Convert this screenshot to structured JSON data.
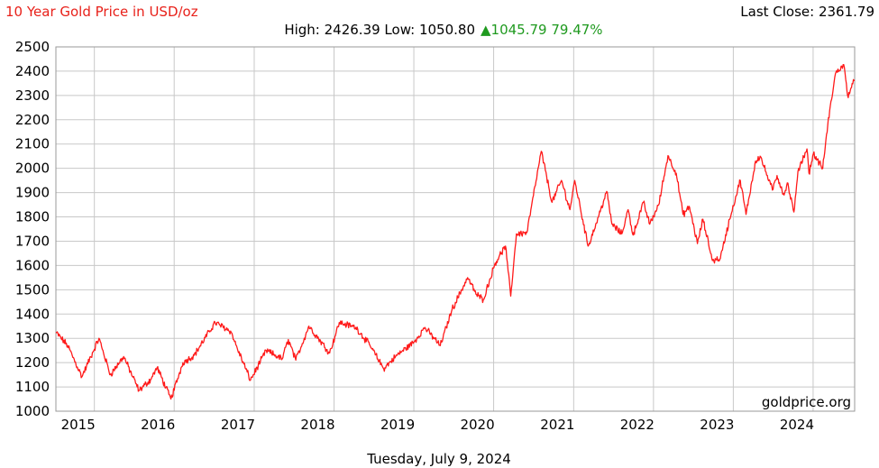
{
  "header": {
    "title": "10 Year Gold Price in USD/oz",
    "last_close": "Last Close: 2361.79",
    "high_low": "High: 2426.39 Low: 1050.80",
    "change": "▲1045.79 79.47%"
  },
  "footer": {
    "date": "Tuesday, July 9, 2024"
  },
  "watermark": "goldprice.org",
  "colors": {
    "line": "#ff1a1a",
    "title": "#e8211a",
    "change": "#1f9a1f",
    "grid": "#c8c8c8"
  },
  "chart_data": {
    "type": "line",
    "title": "10 Year Gold Price in USD/oz",
    "xlabel": "",
    "ylabel": "",
    "grid": true,
    "x_ticks": [
      "2015",
      "2016",
      "2017",
      "2018",
      "2019",
      "2020",
      "2021",
      "2022",
      "2023",
      "2024"
    ],
    "y_ticks": [
      1000,
      1100,
      1200,
      1300,
      1400,
      1500,
      1600,
      1700,
      1800,
      1900,
      2000,
      2100,
      2200,
      2300,
      2400,
      2500
    ],
    "xlim": [
      "2014-07-09",
      "2024-07-09"
    ],
    "ylim": [
      1000,
      2500
    ],
    "series": [
      {
        "x": [
          "2014-07-09",
          "2014-09-01",
          "2014-11-05",
          "2015-01-22",
          "2015-03-15",
          "2015-05-15",
          "2015-07-24",
          "2015-09-15",
          "2015-10-15",
          "2015-12-17",
          "2016-02-10",
          "2016-04-01",
          "2016-07-06",
          "2016-09-15",
          "2016-10-15",
          "2016-12-15",
          "2017-02-25",
          "2017-05-09",
          "2017-06-06",
          "2017-07-10",
          "2017-09-08",
          "2017-12-12",
          "2018-01-25",
          "2018-04-11",
          "2018-06-15",
          "2018-08-16",
          "2018-10-15",
          "2019-01-02",
          "2019-02-20",
          "2019-05-02",
          "2019-06-25",
          "2019-09-04",
          "2019-10-15",
          "2019-11-15",
          "2020-01-08",
          "2020-02-24",
          "2020-03-19",
          "2020-04-14",
          "2020-06-01",
          "2020-08-06",
          "2020-09-24",
          "2020-11-06",
          "2020-12-15",
          "2021-01-06",
          "2021-03-08",
          "2021-04-15",
          "2021-06-01",
          "2021-06-25",
          "2021-08-09",
          "2021-09-07",
          "2021-09-30",
          "2021-11-16",
          "2021-12-15",
          "2022-01-25",
          "2022-03-08",
          "2022-04-15",
          "2022-05-16",
          "2022-06-15",
          "2022-07-21",
          "2022-08-15",
          "2022-09-28",
          "2022-11-03",
          "2022-12-15",
          "2023-02-02",
          "2023-02-28",
          "2023-04-13",
          "2023-05-04",
          "2023-06-29",
          "2023-07-20",
          "2023-08-21",
          "2023-09-05",
          "2023-10-05",
          "2023-10-27",
          "2023-12-04",
          "2023-12-13",
          "2024-01-02",
          "2024-02-14",
          "2024-03-08",
          "2024-04-12",
          "2024-05-20",
          "2024-06-07",
          "2024-07-09"
        ],
        "values": [
          1325,
          1270,
          1142,
          1300,
          1150,
          1225,
          1085,
          1130,
          1180,
          1050,
          1200,
          1230,
          1365,
          1330,
          1260,
          1128,
          1250,
          1215,
          1295,
          1210,
          1350,
          1240,
          1365,
          1345,
          1270,
          1175,
          1230,
          1285,
          1345,
          1270,
          1420,
          1550,
          1480,
          1460,
          1610,
          1680,
          1474,
          1730,
          1735,
          2070,
          1860,
          1950,
          1830,
          1950,
          1680,
          1775,
          1905,
          1770,
          1730,
          1830,
          1725,
          1860,
          1770,
          1850,
          2052,
          1980,
          1810,
          1840,
          1690,
          1790,
          1620,
          1630,
          1790,
          1950,
          1810,
          2030,
          2050,
          1910,
          1970,
          1890,
          1940,
          1820,
          2000,
          2080,
          1980,
          2060,
          2000,
          2180,
          2390,
          2427,
          2300,
          2362
        ]
      }
    ]
  }
}
